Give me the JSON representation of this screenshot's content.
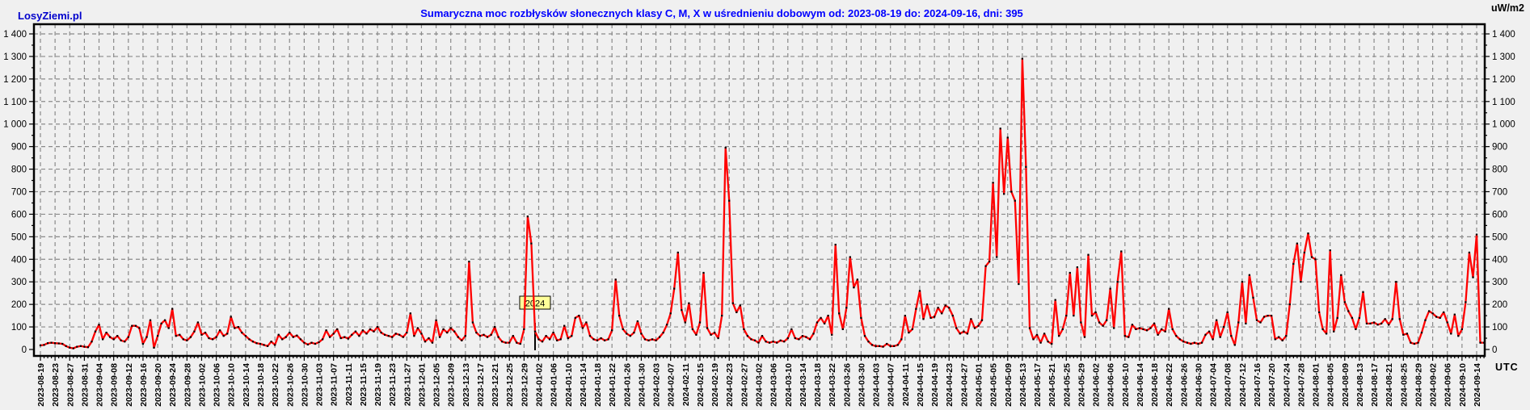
{
  "page": {
    "background": "#f0f0f0"
  },
  "header": {
    "logo": "LosyZiemi.pl",
    "title": "Sumaryczna moc rozbłysków słonecznych klasy C, M, X w uśrednieniu dobowym od: 2023-08-19 do: 2024-09-16, dni: 395",
    "unit_label": "uW/m2",
    "timezone_label": "UTC"
  },
  "chart_data": {
    "type": "line",
    "title": "Sumaryczna moc rozbłysków słonecznych klasy C, M, X w uśrednieniu dobowym od: 2023-08-19 do: 2024-09-16, dni: 395",
    "series_name": "Sumaryczna moc rozbłysków (uW/m2)",
    "line_color": "#ff0000",
    "marker_color": "#000000",
    "grid": true,
    "grid_color": "#8a8a8a",
    "x_start": "2023-08-19",
    "x_end": "2024-09-16",
    "days": 395,
    "x_step_days": 1,
    "x_tick_every_days": 4,
    "ylim": [
      0,
      1400
    ],
    "y_tick_interval": 100,
    "ylabel": "uW/m2",
    "xlabel": "UTC",
    "y_tick_labels": [
      "0",
      "100",
      "200",
      "300",
      "400",
      "500",
      "600",
      "700",
      "800",
      "900",
      "1 000",
      "1 100",
      "1 200",
      "1 300",
      "1 400"
    ],
    "year_marker": {
      "label": "2024",
      "at_day_index": 135,
      "box_color": "#ffff99"
    },
    "x_tick_labels": [
      "2023-08-19",
      "2023-08-23",
      "2023-08-27",
      "2023-08-31",
      "2023-09-04",
      "2023-09-08",
      "2023-09-12",
      "2023-09-16",
      "2023-09-20",
      "2023-09-24",
      "2023-09-28",
      "2023-10-02",
      "2023-10-06",
      "2023-10-10",
      "2023-10-14",
      "2023-10-18",
      "2023-10-22",
      "2023-10-26",
      "2023-10-30",
      "2023-11-03",
      "2023-11-07",
      "2023-11-11",
      "2023-11-15",
      "2023-11-19",
      "2023-11-23",
      "2023-11-27",
      "2023-12-01",
      "2023-12-05",
      "2023-12-09",
      "2023-12-13",
      "2023-12-17",
      "2023-12-21",
      "2023-12-25",
      "2023-12-29",
      "2024-01-02",
      "2024-01-06",
      "2024-01-10",
      "2024-01-14",
      "2024-01-18",
      "2024-01-22",
      "2024-01-26",
      "2024-01-30",
      "2024-02-03",
      "2024-02-07",
      "2024-02-11",
      "2024-02-15",
      "2024-02-19",
      "2024-02-23",
      "2024-02-27",
      "2024-03-02",
      "2024-03-06",
      "2024-03-10",
      "2024-03-14",
      "2024-03-18",
      "2024-03-22",
      "2024-03-26",
      "2024-03-30",
      "2024-04-03",
      "2024-04-07",
      "2024-04-11",
      "2024-04-15",
      "2024-04-19",
      "2024-04-23",
      "2024-04-27",
      "2024-05-01",
      "2024-05-05",
      "2024-05-09",
      "2024-05-13",
      "2024-05-17",
      "2024-05-21",
      "2024-05-25",
      "2024-05-29",
      "2024-06-02",
      "2024-06-06",
      "2024-06-10",
      "2024-06-14",
      "2024-06-18",
      "2024-06-22",
      "2024-06-26",
      "2024-06-30",
      "2024-07-04",
      "2024-07-08",
      "2024-07-12",
      "2024-07-16",
      "2024-07-20",
      "2024-07-24",
      "2024-07-28",
      "2024-08-01",
      "2024-08-05",
      "2024-08-09",
      "2024-08-13",
      "2024-08-17",
      "2024-08-21",
      "2024-08-25",
      "2024-08-29",
      "2024-09-02",
      "2024-09-06",
      "2024-09-10",
      "2024-09-14"
    ],
    "values": [
      18,
      20,
      28,
      30,
      28,
      27,
      25,
      15,
      8,
      5,
      12,
      15,
      12,
      10,
      35,
      80,
      110,
      45,
      75,
      55,
      45,
      60,
      40,
      35,
      55,
      105,
      105,
      95,
      25,
      55,
      130,
      8,
      60,
      115,
      130,
      95,
      180,
      60,
      65,
      45,
      40,
      55,
      80,
      120,
      65,
      75,
      50,
      45,
      55,
      85,
      60,
      70,
      145,
      95,
      100,
      75,
      60,
      45,
      35,
      28,
      25,
      20,
      15,
      35,
      20,
      65,
      45,
      55,
      75,
      55,
      62,
      45,
      30,
      22,
      30,
      25,
      32,
      45,
      85,
      55,
      70,
      90,
      50,
      55,
      48,
      65,
      80,
      60,
      85,
      70,
      90,
      80,
      100,
      75,
      65,
      60,
      55,
      70,
      65,
      55,
      75,
      160,
      60,
      95,
      70,
      35,
      50,
      30,
      130,
      55,
      90,
      75,
      95,
      80,
      55,
      40,
      60,
      390,
      120,
      75,
      60,
      65,
      55,
      65,
      100,
      55,
      35,
      30,
      30,
      60,
      30,
      25,
      90,
      590,
      470,
      80,
      45,
      35,
      60,
      45,
      75,
      40,
      45,
      105,
      50,
      60,
      140,
      150,
      95,
      120,
      60,
      45,
      40,
      50,
      40,
      45,
      85,
      310,
      150,
      90,
      70,
      60,
      75,
      125,
      70,
      45,
      40,
      45,
      40,
      55,
      75,
      110,
      160,
      270,
      430,
      175,
      120,
      205,
      90,
      65,
      120,
      340,
      95,
      65,
      75,
      50,
      150,
      895,
      660,
      205,
      165,
      195,
      90,
      60,
      45,
      40,
      30,
      60,
      35,
      30,
      35,
      30,
      40,
      35,
      50,
      90,
      50,
      45,
      60,
      55,
      45,
      70,
      120,
      140,
      115,
      150,
      65,
      465,
      160,
      90,
      185,
      410,
      275,
      310,
      140,
      60,
      35,
      20,
      15,
      15,
      12,
      25,
      15,
      15,
      20,
      45,
      150,
      75,
      90,
      180,
      260,
      135,
      200,
      140,
      145,
      185,
      160,
      195,
      185,
      150,
      95,
      70,
      80,
      70,
      135,
      95,
      105,
      130,
      370,
      390,
      740,
      410,
      980,
      690,
      940,
      700,
      660,
      290,
      1290,
      810,
      95,
      45,
      65,
      30,
      70,
      35,
      25,
      220,
      60,
      90,
      150,
      340,
      150,
      365,
      120,
      55,
      420,
      150,
      165,
      120,
      105,
      130,
      270,
      95,
      300,
      435,
      60,
      55,
      110,
      90,
      95,
      90,
      85,
      95,
      115,
      65,
      90,
      80,
      180,
      90,
      60,
      45,
      35,
      30,
      25,
      30,
      25,
      30,
      65,
      80,
      45,
      130,
      55,
      100,
      165,
      60,
      20,
      120,
      300,
      115,
      330,
      230,
      130,
      120,
      145,
      150,
      150,
      45,
      55,
      40,
      60,
      200,
      380,
      470,
      300,
      430,
      515,
      410,
      400,
      165,
      90,
      70,
      440,
      80,
      140,
      330,
      210,
      170,
      140,
      90,
      140,
      255,
      115,
      115,
      120,
      110,
      115,
      135,
      110,
      135,
      300,
      135,
      65,
      70,
      30,
      25,
      30,
      75,
      130,
      170,
      160,
      145,
      140,
      165,
      120,
      70,
      155,
      60,
      90,
      210,
      430,
      320,
      510,
      30,
      30
    ]
  }
}
